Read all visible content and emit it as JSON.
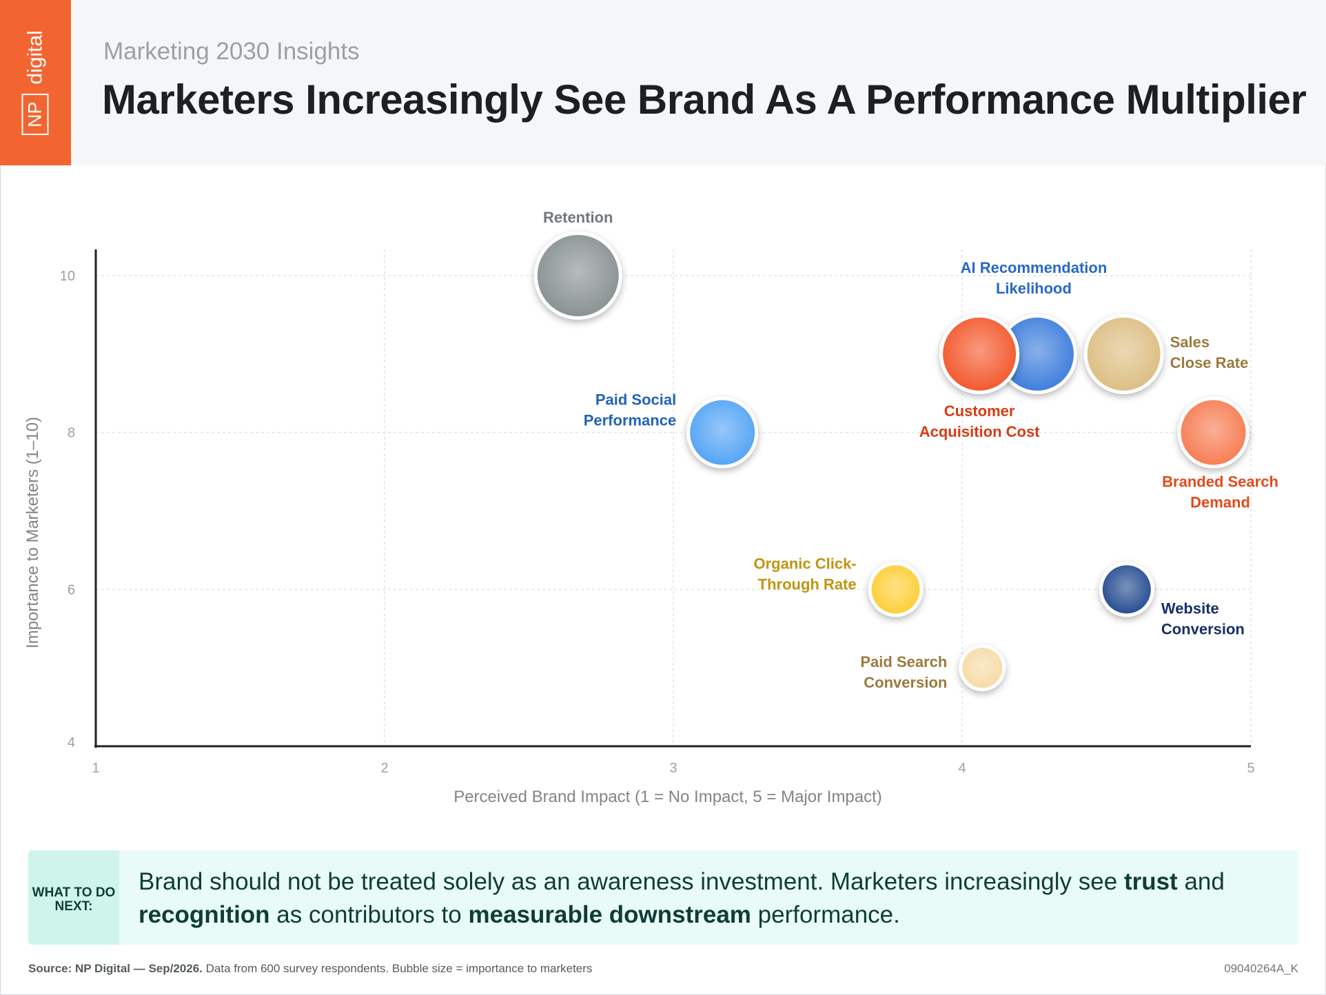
{
  "header": {
    "logo_np": "NP",
    "logo_digital": "digital",
    "subtitle": "Marketing 2030 Insights",
    "title": "Marketers Increasingly See Brand As A Performance Multiplier"
  },
  "chart_data": {
    "type": "scatter",
    "xlabel": "Perceived Brand Impact (1 = No Impact, 5 = Major Impact)",
    "ylabel": "Importance to Marketers (1–10)",
    "xlim": [
      1,
      5
    ],
    "ylim": [
      4,
      10.3
    ],
    "xticks": [
      1,
      2,
      3,
      4,
      5
    ],
    "yticks": [
      4,
      6,
      8,
      10
    ],
    "grid": true,
    "points": [
      {
        "name": "Retention",
        "label_lines": [
          "Retention"
        ],
        "x": 2.67,
        "y": 10,
        "size": 10,
        "color": "#8a9294",
        "label_color": "#6f787b",
        "label_pos": "top"
      },
      {
        "name": "AI Recommendation Likelihood",
        "label_lines": [
          "AI Recommendation",
          "Likelihood"
        ],
        "x": 4.26,
        "y": 9,
        "size": 9,
        "color": "#3f7fdc",
        "label_color": "#2868c6",
        "label_pos": "top"
      },
      {
        "name": "Customer Acquisition Cost",
        "label_lines": [
          "Customer",
          "Acquisition Cost"
        ],
        "x": 4.06,
        "y": 9,
        "size": 9,
        "color": "#f35a2f",
        "label_color": "#d83b14",
        "label_pos": "bottom"
      },
      {
        "name": "Sales Close Rate",
        "label_lines": [
          "Sales",
          "Close Rate"
        ],
        "x": 4.56,
        "y": 9,
        "size": 9,
        "color": "#ddbf84",
        "label_color": "#9a7b3d",
        "label_pos": "right"
      },
      {
        "name": "Paid Social Performance",
        "label_lines": [
          "Paid Social",
          "Performance"
        ],
        "x": 3.17,
        "y": 8,
        "size": 8,
        "color": "#55a5f5",
        "label_color": "#2163b8",
        "label_pos": "left"
      },
      {
        "name": "Branded Search Demand",
        "label_lines": [
          "Branded Search",
          "Demand"
        ],
        "x": 4.87,
        "y": 8,
        "size": 8,
        "color": "#f77e55",
        "label_color": "#e24a1b",
        "label_pos": "bottom"
      },
      {
        "name": "Organic Click-Through Rate",
        "label_lines": [
          "Organic Click-",
          "Through Rate"
        ],
        "x": 3.77,
        "y": 6,
        "size": 6,
        "color": "#fecf3a",
        "label_color": "#c09510",
        "label_pos": "left"
      },
      {
        "name": "Website Conversion",
        "label_lines": [
          "Website",
          "Conversion"
        ],
        "x": 4.57,
        "y": 6,
        "size": 6,
        "color": "#294f92",
        "label_color": "#143066",
        "label_pos": "right"
      },
      {
        "name": "Paid Search Conversion",
        "label_lines": [
          "Paid Search",
          "Conversion"
        ],
        "x": 4.07,
        "y": 5,
        "size": 5,
        "color": "#f6dca8",
        "label_color": "#9a7b3d",
        "label_pos": "left"
      }
    ]
  },
  "callout": {
    "tag": "WHAT TO DO NEXT:",
    "text_1": "Brand should not be treated solely as an awareness investment. Marketers increasingly see ",
    "bold_1": "trust",
    "text_2": " and ",
    "bold_2": "recognition",
    "text_3": " as contributors to ",
    "bold_3": "measurable downstream",
    "text_4": " performance."
  },
  "footer": {
    "source_bold": "Source: NP Digital — Sep/2026.",
    "source_rest": " Data from 600 survey respondents. Bubble size = importance to marketers",
    "code": "09040264A_K"
  }
}
